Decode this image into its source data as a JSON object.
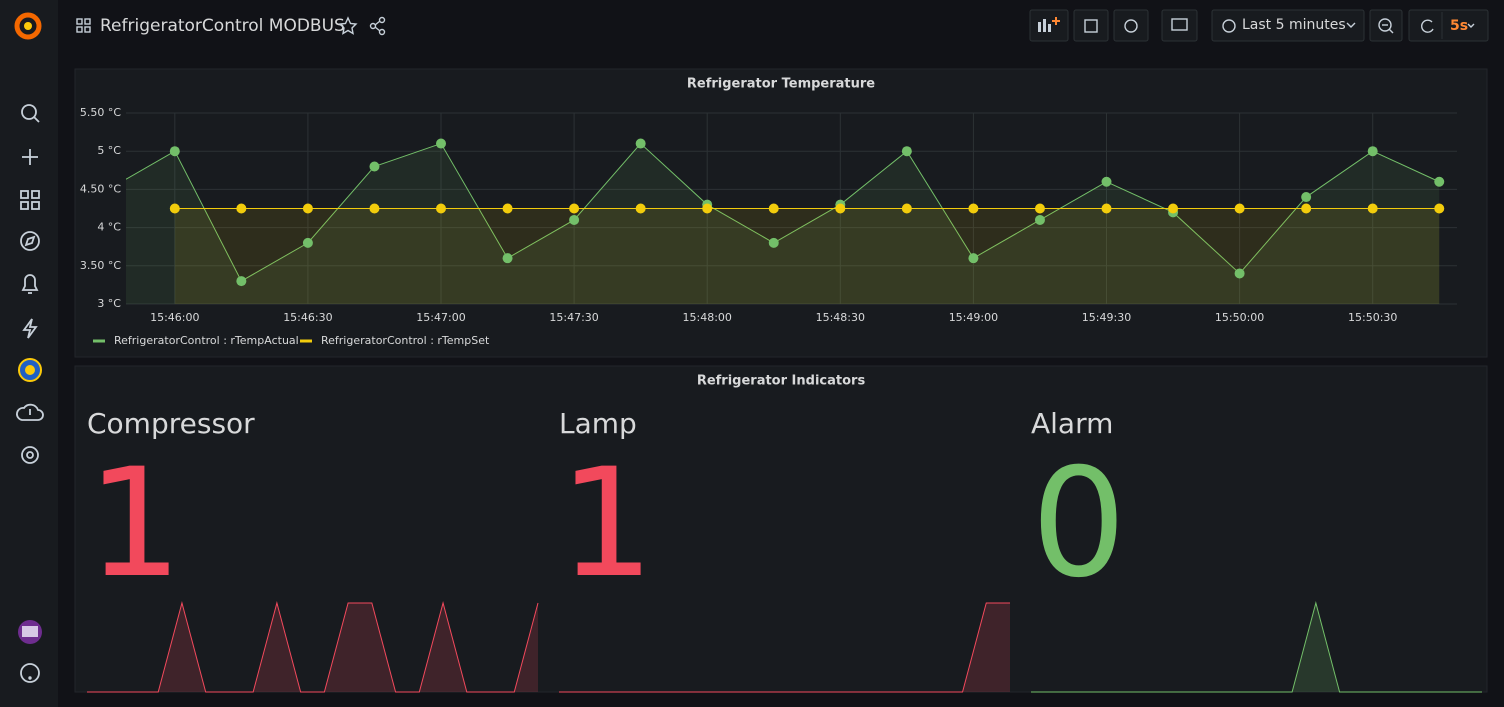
{
  "header": {
    "title": "RefrigeratorControl MODBUS",
    "time_range": "Last 5 minutes",
    "refresh": "5s"
  },
  "chart_data": [
    {
      "type": "line",
      "title": "Refrigerator Temperature",
      "x": [
        "15:45:45",
        "15:46:00",
        "15:46:15",
        "15:46:30",
        "15:46:45",
        "15:47:00",
        "15:47:15",
        "15:47:30",
        "15:47:45",
        "15:48:00",
        "15:48:15",
        "15:48:30",
        "15:48:45",
        "15:49:00",
        "15:49:15",
        "15:49:30",
        "15:49:45",
        "15:50:00",
        "15:50:15",
        "15:50:30",
        "15:50:45"
      ],
      "series": [
        {
          "name": "RefrigeratorControl : rTempActual",
          "color": "#73bf69",
          "values": [
            4.5,
            5.0,
            3.3,
            3.8,
            4.8,
            5.1,
            3.6,
            4.1,
            5.1,
            4.3,
            3.8,
            4.3,
            5.0,
            3.6,
            4.1,
            4.6,
            4.2,
            3.4,
            4.4,
            5.0,
            4.6
          ]
        },
        {
          "name": "RefrigeratorControl : rTempSet",
          "color": "#f2cc0c",
          "values": [
            null,
            4.25,
            4.25,
            4.25,
            4.25,
            4.25,
            4.25,
            4.25,
            4.25,
            4.25,
            4.25,
            4.25,
            4.25,
            4.25,
            4.25,
            4.25,
            4.25,
            4.25,
            4.25,
            4.25,
            4.25
          ]
        }
      ],
      "xlim": [
        "15:45:49",
        "15:50:49"
      ],
      "xticks": [
        "15:46:00",
        "15:46:30",
        "15:47:00",
        "15:47:30",
        "15:48:00",
        "15:48:30",
        "15:49:00",
        "15:49:30",
        "15:50:00",
        "15:50:30"
      ],
      "ylim": [
        3,
        5.5
      ],
      "yticks": [
        {
          "value": 3,
          "label": "3 °C"
        },
        {
          "value": 3.5,
          "label": "3.50 °C"
        },
        {
          "value": 4,
          "label": "4 °C"
        },
        {
          "value": 4.5,
          "label": "4.50 °C"
        },
        {
          "value": 5,
          "label": "5 °C"
        },
        {
          "value": 5.5,
          "label": "5.50 °C"
        }
      ],
      "grid": true,
      "legend": "bottom-left"
    },
    {
      "type": "stat",
      "title": "Refrigerator Indicators",
      "ylim": [
        0,
        1
      ],
      "panels": [
        {
          "name": "Compressor",
          "value": 1,
          "color": "#f2495c",
          "sparkline": [
            0,
            0,
            0,
            0,
            1,
            0,
            0,
            0,
            1,
            0,
            0,
            1,
            1,
            0,
            0,
            1,
            0,
            0,
            0,
            1
          ]
        },
        {
          "name": "Lamp",
          "value": 1,
          "color": "#f2495c",
          "sparkline": [
            0,
            0,
            0,
            0,
            0,
            0,
            0,
            0,
            0,
            0,
            0,
            0,
            0,
            0,
            0,
            0,
            0,
            0,
            1,
            1
          ]
        },
        {
          "name": "Alarm",
          "value": 0,
          "color": "#73bf69",
          "sparkline": [
            0,
            0,
            0,
            0,
            0,
            0,
            0,
            0,
            0,
            0,
            0,
            0,
            1,
            0,
            0,
            0,
            0,
            0,
            0,
            0
          ]
        }
      ]
    }
  ]
}
